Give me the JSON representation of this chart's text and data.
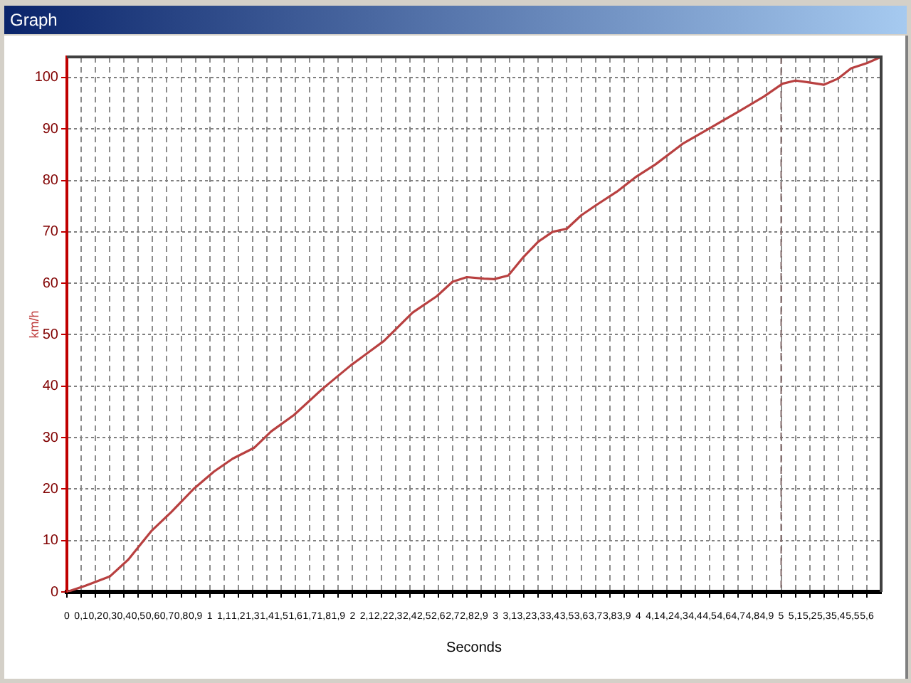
{
  "chart_data": {
    "type": "line",
    "title": "Graph",
    "xlabel": "Seconds",
    "ylabel": "km/h",
    "x": [
      0,
      0.13,
      0.3,
      0.43,
      0.59,
      0.73,
      0.89,
      1.03,
      1.16,
      1.31,
      1.43,
      1.59,
      1.79,
      1.99,
      2.22,
      2.42,
      2.59,
      2.7,
      2.8,
      2.92,
      2.99,
      3.09,
      3.19,
      3.3,
      3.4,
      3.5,
      3.6,
      3.7,
      3.85,
      3.98,
      4.12,
      4.31,
      4.51,
      4.71,
      4.88,
      5.01,
      5.1,
      5.18,
      5.3,
      5.4,
      5.49,
      5.6,
      5.7
    ],
    "series": [
      {
        "color": "#b84040",
        "values": [
          0,
          1.2,
          3.0,
          6.3,
          11.8,
          15.5,
          20.1,
          23.4,
          25.9,
          28.0,
          31.2,
          34.4,
          39.5,
          44.1,
          48.8,
          54.3,
          57.5,
          60.3,
          61.2,
          60.9,
          60.8,
          61.5,
          64.9,
          68.1,
          70.0,
          70.6,
          73.2,
          75.1,
          77.8,
          80.6,
          83.1,
          87.1,
          90.3,
          93.5,
          96.3,
          98.8,
          99.4,
          99.1,
          98.6,
          99.8,
          101.8,
          102.8,
          104
        ]
      }
    ],
    "xlim": [
      0,
      5.7
    ],
    "xticks": [
      0,
      {
        "value": 0.1,
        "label": "0,1"
      },
      {
        "value": 0.2,
        "label": "0,2"
      },
      {
        "value": 0.3,
        "label": "0,3"
      },
      {
        "value": 0.4,
        "label": "0,4"
      },
      {
        "value": 0.5,
        "label": "0,5"
      },
      {
        "value": 0.6,
        "label": "0,6"
      },
      {
        "value": 0.7,
        "label": "0,7"
      },
      {
        "value": 0.8,
        "label": "0,8"
      },
      {
        "value": 0.9,
        "label": "0,9"
      },
      1,
      {
        "value": 1.1,
        "label": "1,1"
      },
      {
        "value": 1.2,
        "label": "1,2"
      },
      {
        "value": 1.3,
        "label": "1,3"
      },
      {
        "value": 1.4,
        "label": "1,4"
      },
      {
        "value": 1.5,
        "label": "1,5"
      },
      {
        "value": 1.6,
        "label": "1,6"
      },
      {
        "value": 1.7,
        "label": "1,7"
      },
      {
        "value": 1.8,
        "label": "1,8"
      },
      {
        "value": 1.9,
        "label": "1,9"
      },
      2,
      {
        "value": 2.1,
        "label": "2,1"
      },
      {
        "value": 2.2,
        "label": "2,2"
      },
      {
        "value": 2.3,
        "label": "2,3"
      },
      {
        "value": 2.4,
        "label": "2,4"
      },
      {
        "value": 2.5,
        "label": "2,5"
      },
      {
        "value": 2.6,
        "label": "2,6"
      },
      {
        "value": 2.7,
        "label": "2,7"
      },
      {
        "value": 2.8,
        "label": "2,8"
      },
      {
        "value": 2.9,
        "label": "2,9"
      },
      3,
      {
        "value": 3.1,
        "label": "3,1"
      },
      {
        "value": 3.2,
        "label": "3,2"
      },
      {
        "value": 3.3,
        "label": "3,3"
      },
      {
        "value": 3.4,
        "label": "3,4"
      },
      {
        "value": 3.5,
        "label": "3,5"
      },
      {
        "value": 3.6,
        "label": "3,6"
      },
      {
        "value": 3.7,
        "label": "3,7"
      },
      {
        "value": 3.8,
        "label": "3,8"
      },
      {
        "value": 3.9,
        "label": "3,9"
      },
      4,
      {
        "value": 4.1,
        "label": "4,1"
      },
      {
        "value": 4.2,
        "label": "4,2"
      },
      {
        "value": 4.3,
        "label": "4,3"
      },
      {
        "value": 4.4,
        "label": "4,4"
      },
      {
        "value": 4.5,
        "label": "4,5"
      },
      {
        "value": 4.6,
        "label": "4,6"
      },
      {
        "value": 4.7,
        "label": "4,7"
      },
      {
        "value": 4.8,
        "label": "4,8"
      },
      {
        "value": 4.9,
        "label": "4,9"
      },
      5,
      {
        "value": 5.1,
        "label": "5,1"
      },
      {
        "value": 5.2,
        "label": "5,2"
      },
      {
        "value": 5.3,
        "label": "5,3"
      },
      {
        "value": 5.4,
        "label": "5,4"
      },
      {
        "value": 5.5,
        "label": "5,5"
      },
      {
        "value": 5.6,
        "label": "5,6"
      }
    ],
    "ylim": [
      0,
      104
    ],
    "yticks": [
      0,
      10,
      20,
      30,
      40,
      50,
      60,
      70,
      80,
      90,
      100
    ],
    "grid": true,
    "marker": "none",
    "line_style": "solid",
    "ref_lines": [
      {
        "axis": "x",
        "value": 5,
        "color": "#806868",
        "line_style": "dashed"
      }
    ]
  }
}
